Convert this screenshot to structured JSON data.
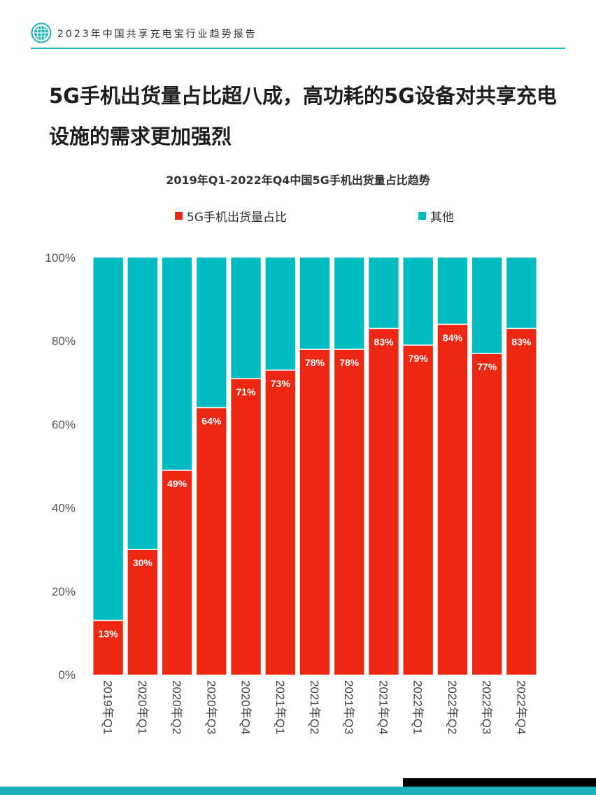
{
  "header": {
    "report_title": "2023年中国共享充电宝行业趋势报告",
    "logo_icon": "globe-logo-icon"
  },
  "page": {
    "title": "5G手机出货量占比超八成，高功耗的5G设备对共享充电设施的需求更加强烈"
  },
  "colors": {
    "accent": "#1ab3b8",
    "primary_series": "#ee2712",
    "secondary_series": "#00bcc1",
    "footer": "#1ab3b8"
  },
  "chart_data": {
    "type": "bar",
    "stacked": true,
    "title": "2019年Q1-2022年Q4中国5G手机出货量占比趋势",
    "categories": [
      "2019年Q1",
      "2020年Q1",
      "2020年Q2",
      "2020年Q3",
      "2020年Q4",
      "2021年Q1",
      "2021年Q2",
      "2021年Q3",
      "2021年Q4",
      "2022年Q1",
      "2022年Q2",
      "2022年Q3",
      "2022年Q4"
    ],
    "series": [
      {
        "name": "5G手机出货量占比",
        "color": "#ee2712",
        "values": [
          13,
          30,
          49,
          64,
          71,
          73,
          78,
          78,
          83,
          79,
          84,
          77,
          83
        ],
        "labels": [
          "13%",
          "30%",
          "49%",
          "64%",
          "71%",
          "73%",
          "78%",
          "78%",
          "83%",
          "79%",
          "84%",
          "77%",
          "83%"
        ]
      },
      {
        "name": "其他",
        "color": "#00bcc1",
        "values": [
          87,
          70,
          51,
          36,
          29,
          27,
          22,
          22,
          17,
          21,
          16,
          23,
          17
        ]
      }
    ],
    "ylim": [
      0,
      100
    ],
    "yticks": [
      "0%",
      "20%",
      "40%",
      "60%",
      "80%",
      "100%"
    ],
    "legend_position": "top",
    "grid": false
  }
}
